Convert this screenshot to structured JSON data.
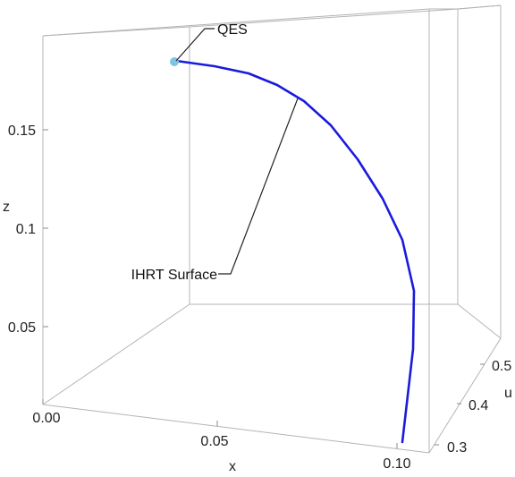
{
  "chart_data": {
    "type": "line",
    "projection": "3d",
    "xlabel": "x",
    "ylabel": "u",
    "zlabel": "z",
    "xlim": [
      0.0,
      0.105
    ],
    "ylim": [
      0.28,
      0.56
    ],
    "zlim": [
      0.0,
      0.2
    ],
    "x_ticks": [
      "0.00",
      "0.05",
      "0.10"
    ],
    "y_ticks": [
      "0.3",
      "0.4",
      "0.5"
    ],
    "z_ticks": [
      "0.05",
      "0.1",
      "0.15"
    ],
    "grid": false,
    "box": true,
    "series": [
      {
        "name": "",
        "color": "#1a1adc",
        "points": [
          {
            "x": 0.0,
            "u": 0.5,
            "z": 0.19
          },
          {
            "x": 0.012,
            "u": 0.49,
            "z": 0.189
          },
          {
            "x": 0.025,
            "u": 0.48,
            "z": 0.185
          },
          {
            "x": 0.038,
            "u": 0.47,
            "z": 0.178
          },
          {
            "x": 0.05,
            "u": 0.46,
            "z": 0.167
          },
          {
            "x": 0.062,
            "u": 0.45,
            "z": 0.151
          },
          {
            "x": 0.072,
            "u": 0.44,
            "z": 0.133
          },
          {
            "x": 0.08,
            "u": 0.43,
            "z": 0.112
          },
          {
            "x": 0.086,
            "u": 0.42,
            "z": 0.089
          },
          {
            "x": 0.09,
            "u": 0.4,
            "z": 0.066
          },
          {
            "x": 0.093,
            "u": 0.37,
            "z": 0.042
          },
          {
            "x": 0.097,
            "u": 0.33,
            "z": 0.012
          }
        ]
      }
    ],
    "highlight_point": {
      "x": 0.0,
      "u": 0.5,
      "z": 0.19,
      "color": "#7ec4e4"
    },
    "annotations": [
      {
        "text": "QES",
        "target_index": 0
      },
      {
        "text": "IHRT Surface",
        "target_index": 4
      }
    ]
  }
}
